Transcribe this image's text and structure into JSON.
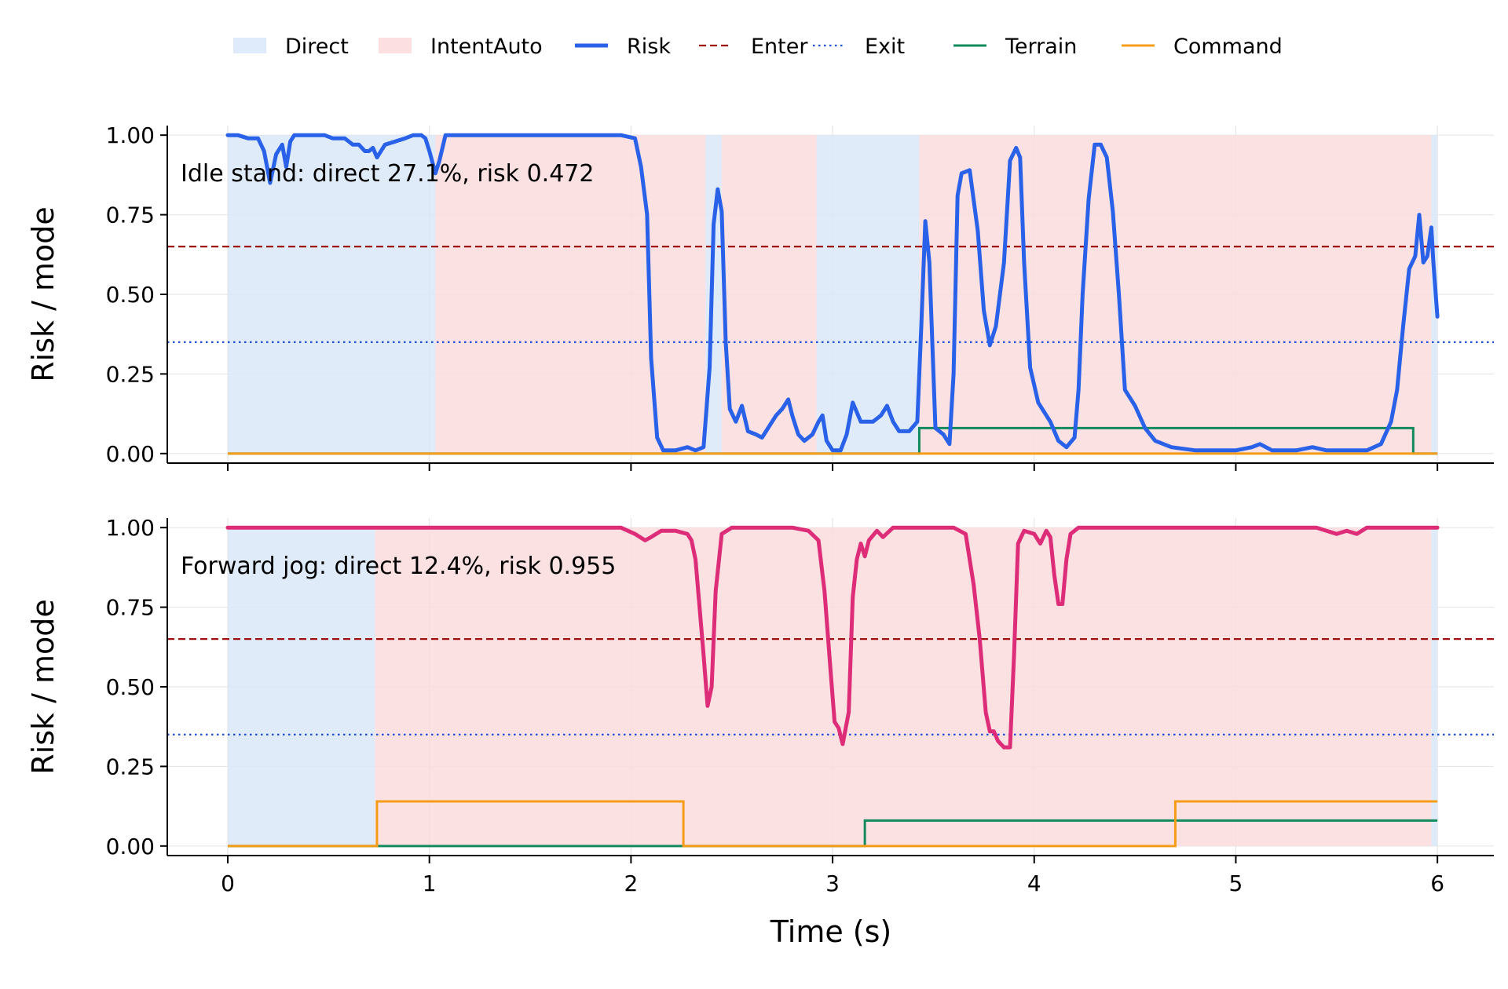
{
  "chart_data": {
    "type": "line",
    "xlabel": "Time (s)",
    "xlim": [
      -0.3,
      6.28
    ],
    "xticks": [
      0,
      1,
      2,
      3,
      4,
      5,
      6
    ],
    "yticks": [
      "0.00",
      "0.25",
      "0.50",
      "0.75",
      "1.00"
    ],
    "legend": {
      "placement": "top-center",
      "entries": [
        "Direct",
        "IntentAuto",
        "Risk",
        "Enter",
        "Exit",
        "Terrain",
        "Command"
      ]
    },
    "colors": {
      "direct": "#dbe8f9",
      "intentauto": "#fbdcde",
      "enter": "#a11010",
      "exit": "#2050d8",
      "terrain": "#118a5e",
      "command": "#f59c18"
    },
    "grid": true,
    "panels": [
      {
        "ylabel": "Risk / mode",
        "ylim": [
          -0.03,
          1.03
        ],
        "annotation": "Idle stand: direct 27.1%, risk 0.472",
        "risk_color": "#2962e8",
        "enter_threshold": 0.65,
        "exit_threshold": 0.35,
        "direct_spans": [
          [
            0,
            1.03
          ],
          [
            2.37,
            2.45
          ],
          [
            2.92,
            3.43
          ],
          [
            5.97,
            6.0
          ]
        ],
        "intentauto_spans": [
          [
            1.03,
            2.37
          ],
          [
            2.45,
            2.92
          ],
          [
            3.43,
            5.97
          ]
        ],
        "terrain": [
          [
            0,
            0.0
          ],
          [
            3.43,
            0.08
          ],
          [
            5.88,
            0.0
          ],
          [
            6.0,
            0.0
          ]
        ],
        "command": [
          [
            0,
            0.0
          ],
          [
            6.0,
            0.0
          ]
        ],
        "risk": {
          "name": "Risk",
          "points": [
            [
              0,
              1.0
            ],
            [
              0.05,
              1.0
            ],
            [
              0.1,
              0.99
            ],
            [
              0.15,
              0.99
            ],
            [
              0.18,
              0.95
            ],
            [
              0.21,
              0.85
            ],
            [
              0.24,
              0.94
            ],
            [
              0.27,
              0.97
            ],
            [
              0.29,
              0.9
            ],
            [
              0.31,
              0.98
            ],
            [
              0.33,
              1.0
            ],
            [
              0.4,
              1.0
            ],
            [
              0.48,
              1.0
            ],
            [
              0.52,
              0.99
            ],
            [
              0.58,
              0.99
            ],
            [
              0.62,
              0.97
            ],
            [
              0.65,
              0.97
            ],
            [
              0.68,
              0.95
            ],
            [
              0.7,
              0.95
            ],
            [
              0.72,
              0.96
            ],
            [
              0.74,
              0.93
            ],
            [
              0.78,
              0.97
            ],
            [
              0.83,
              0.98
            ],
            [
              0.88,
              0.99
            ],
            [
              0.92,
              1.0
            ],
            [
              0.96,
              1.0
            ],
            [
              0.98,
              0.99
            ],
            [
              1.0,
              0.95
            ],
            [
              1.03,
              0.88
            ],
            [
              1.05,
              0.92
            ],
            [
              1.08,
              1.0
            ],
            [
              1.2,
              1.0
            ],
            [
              1.5,
              1.0
            ],
            [
              1.8,
              1.0
            ],
            [
              1.95,
              1.0
            ],
            [
              2.02,
              0.99
            ],
            [
              2.05,
              0.9
            ],
            [
              2.08,
              0.75
            ],
            [
              2.1,
              0.3
            ],
            [
              2.13,
              0.05
            ],
            [
              2.16,
              0.01
            ],
            [
              2.22,
              0.01
            ],
            [
              2.28,
              0.02
            ],
            [
              2.32,
              0.01
            ],
            [
              2.36,
              0.02
            ],
            [
              2.39,
              0.27
            ],
            [
              2.41,
              0.72
            ],
            [
              2.43,
              0.83
            ],
            [
              2.45,
              0.76
            ],
            [
              2.47,
              0.35
            ],
            [
              2.49,
              0.14
            ],
            [
              2.52,
              0.1
            ],
            [
              2.55,
              0.15
            ],
            [
              2.58,
              0.07
            ],
            [
              2.62,
              0.06
            ],
            [
              2.65,
              0.05
            ],
            [
              2.68,
              0.08
            ],
            [
              2.72,
              0.12
            ],
            [
              2.75,
              0.14
            ],
            [
              2.78,
              0.17
            ],
            [
              2.8,
              0.12
            ],
            [
              2.83,
              0.06
            ],
            [
              2.86,
              0.04
            ],
            [
              2.9,
              0.06
            ],
            [
              2.93,
              0.1
            ],
            [
              2.95,
              0.12
            ],
            [
              2.97,
              0.04
            ],
            [
              3.0,
              0.01
            ],
            [
              3.04,
              0.01
            ],
            [
              3.07,
              0.06
            ],
            [
              3.1,
              0.16
            ],
            [
              3.14,
              0.1
            ],
            [
              3.2,
              0.1
            ],
            [
              3.24,
              0.12
            ],
            [
              3.27,
              0.15
            ],
            [
              3.3,
              0.1
            ],
            [
              3.33,
              0.07
            ],
            [
              3.38,
              0.07
            ],
            [
              3.42,
              0.1
            ],
            [
              3.44,
              0.4
            ],
            [
              3.46,
              0.73
            ],
            [
              3.48,
              0.6
            ],
            [
              3.51,
              0.08
            ],
            [
              3.55,
              0.06
            ],
            [
              3.58,
              0.03
            ],
            [
              3.6,
              0.25
            ],
            [
              3.62,
              0.81
            ],
            [
              3.64,
              0.88
            ],
            [
              3.68,
              0.89
            ],
            [
              3.72,
              0.7
            ],
            [
              3.75,
              0.45
            ],
            [
              3.78,
              0.34
            ],
            [
              3.81,
              0.4
            ],
            [
              3.85,
              0.6
            ],
            [
              3.88,
              0.92
            ],
            [
              3.91,
              0.96
            ],
            [
              3.93,
              0.93
            ],
            [
              3.95,
              0.6
            ],
            [
              3.98,
              0.27
            ],
            [
              4.02,
              0.16
            ],
            [
              4.08,
              0.1
            ],
            [
              4.12,
              0.04
            ],
            [
              4.16,
              0.02
            ],
            [
              4.2,
              0.05
            ],
            [
              4.22,
              0.2
            ],
            [
              4.24,
              0.5
            ],
            [
              4.27,
              0.8
            ],
            [
              4.3,
              0.97
            ],
            [
              4.33,
              0.97
            ],
            [
              4.36,
              0.93
            ],
            [
              4.39,
              0.76
            ],
            [
              4.42,
              0.5
            ],
            [
              4.45,
              0.2
            ],
            [
              4.5,
              0.15
            ],
            [
              4.55,
              0.08
            ],
            [
              4.6,
              0.04
            ],
            [
              4.68,
              0.02
            ],
            [
              4.8,
              0.01
            ],
            [
              5.0,
              0.01
            ],
            [
              5.08,
              0.02
            ],
            [
              5.12,
              0.03
            ],
            [
              5.18,
              0.01
            ],
            [
              5.3,
              0.01
            ],
            [
              5.38,
              0.02
            ],
            [
              5.45,
              0.01
            ],
            [
              5.55,
              0.01
            ],
            [
              5.65,
              0.01
            ],
            [
              5.72,
              0.03
            ],
            [
              5.77,
              0.1
            ],
            [
              5.8,
              0.2
            ],
            [
              5.83,
              0.4
            ],
            [
              5.86,
              0.58
            ],
            [
              5.89,
              0.62
            ],
            [
              5.91,
              0.75
            ],
            [
              5.93,
              0.6
            ],
            [
              5.95,
              0.62
            ],
            [
              5.97,
              0.71
            ],
            [
              5.98,
              0.6
            ],
            [
              6.0,
              0.43
            ]
          ]
        }
      },
      {
        "ylabel": "Risk / mode",
        "ylim": [
          -0.03,
          1.03
        ],
        "annotation": "Forward jog: direct 12.4%, risk 0.955",
        "risk_color": "#de2d78",
        "enter_threshold": 0.65,
        "exit_threshold": 0.35,
        "direct_spans": [
          [
            0,
            0.73
          ],
          [
            5.97,
            6.0
          ]
        ],
        "intentauto_spans": [
          [
            0.73,
            5.97
          ]
        ],
        "terrain": [
          [
            0,
            0.0
          ],
          [
            3.16,
            0.08
          ],
          [
            6.0,
            0.08
          ]
        ],
        "command": [
          [
            0,
            0.0
          ],
          [
            0.74,
            0.14
          ],
          [
            2.26,
            0.0
          ],
          [
            4.7,
            0.14
          ],
          [
            6.0,
            0.14
          ]
        ],
        "risk": {
          "name": "Risk",
          "points": [
            [
              0,
              1.0
            ],
            [
              0.5,
              1.0
            ],
            [
              1.0,
              1.0
            ],
            [
              1.5,
              1.0
            ],
            [
              1.95,
              1.0
            ],
            [
              2.02,
              0.98
            ],
            [
              2.07,
              0.96
            ],
            [
              2.1,
              0.97
            ],
            [
              2.15,
              0.99
            ],
            [
              2.22,
              0.99
            ],
            [
              2.28,
              0.98
            ],
            [
              2.3,
              0.96
            ],
            [
              2.32,
              0.9
            ],
            [
              2.34,
              0.75
            ],
            [
              2.36,
              0.6
            ],
            [
              2.38,
              0.44
            ],
            [
              2.4,
              0.5
            ],
            [
              2.42,
              0.8
            ],
            [
              2.45,
              0.98
            ],
            [
              2.5,
              1.0
            ],
            [
              2.8,
              1.0
            ],
            [
              2.88,
              0.99
            ],
            [
              2.93,
              0.96
            ],
            [
              2.96,
              0.8
            ],
            [
              2.99,
              0.55
            ],
            [
              3.01,
              0.39
            ],
            [
              3.03,
              0.37
            ],
            [
              3.05,
              0.32
            ],
            [
              3.08,
              0.42
            ],
            [
              3.1,
              0.78
            ],
            [
              3.12,
              0.9
            ],
            [
              3.14,
              0.95
            ],
            [
              3.16,
              0.91
            ],
            [
              3.18,
              0.96
            ],
            [
              3.22,
              0.99
            ],
            [
              3.25,
              0.97
            ],
            [
              3.3,
              1.0
            ],
            [
              3.6,
              1.0
            ],
            [
              3.66,
              0.98
            ],
            [
              3.7,
              0.82
            ],
            [
              3.73,
              0.65
            ],
            [
              3.76,
              0.42
            ],
            [
              3.78,
              0.36
            ],
            [
              3.8,
              0.36
            ],
            [
              3.82,
              0.33
            ],
            [
              3.85,
              0.31
            ],
            [
              3.88,
              0.31
            ],
            [
              3.9,
              0.6
            ],
            [
              3.92,
              0.95
            ],
            [
              3.95,
              0.99
            ],
            [
              4.0,
              0.98
            ],
            [
              4.03,
              0.95
            ],
            [
              4.06,
              0.99
            ],
            [
              4.08,
              0.97
            ],
            [
              4.1,
              0.85
            ],
            [
              4.12,
              0.76
            ],
            [
              4.14,
              0.76
            ],
            [
              4.16,
              0.9
            ],
            [
              4.18,
              0.98
            ],
            [
              4.22,
              1.0
            ],
            [
              4.6,
              1.0
            ],
            [
              5.0,
              1.0
            ],
            [
              5.4,
              1.0
            ],
            [
              5.45,
              0.99
            ],
            [
              5.5,
              0.98
            ],
            [
              5.55,
              0.99
            ],
            [
              5.6,
              0.98
            ],
            [
              5.65,
              1.0
            ],
            [
              6.0,
              1.0
            ]
          ]
        }
      }
    ]
  }
}
